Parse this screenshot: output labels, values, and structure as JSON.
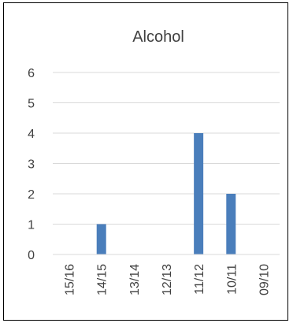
{
  "chart_data": {
    "type": "bar",
    "title": "Alcohol",
    "categories": [
      "15/16",
      "14/15",
      "13/14",
      "12/13",
      "11/12",
      "10/11",
      "09/10"
    ],
    "values": [
      0,
      1,
      0,
      0,
      4,
      2,
      0
    ],
    "ylim": [
      0,
      6
    ],
    "yticks": [
      0,
      1,
      2,
      3,
      4,
      5,
      6
    ],
    "xlabel": "",
    "ylabel": "",
    "grid": true,
    "bar_color": "#4a7ebb",
    "grid_color": "#d9d9d9",
    "text_color": "#404040"
  }
}
